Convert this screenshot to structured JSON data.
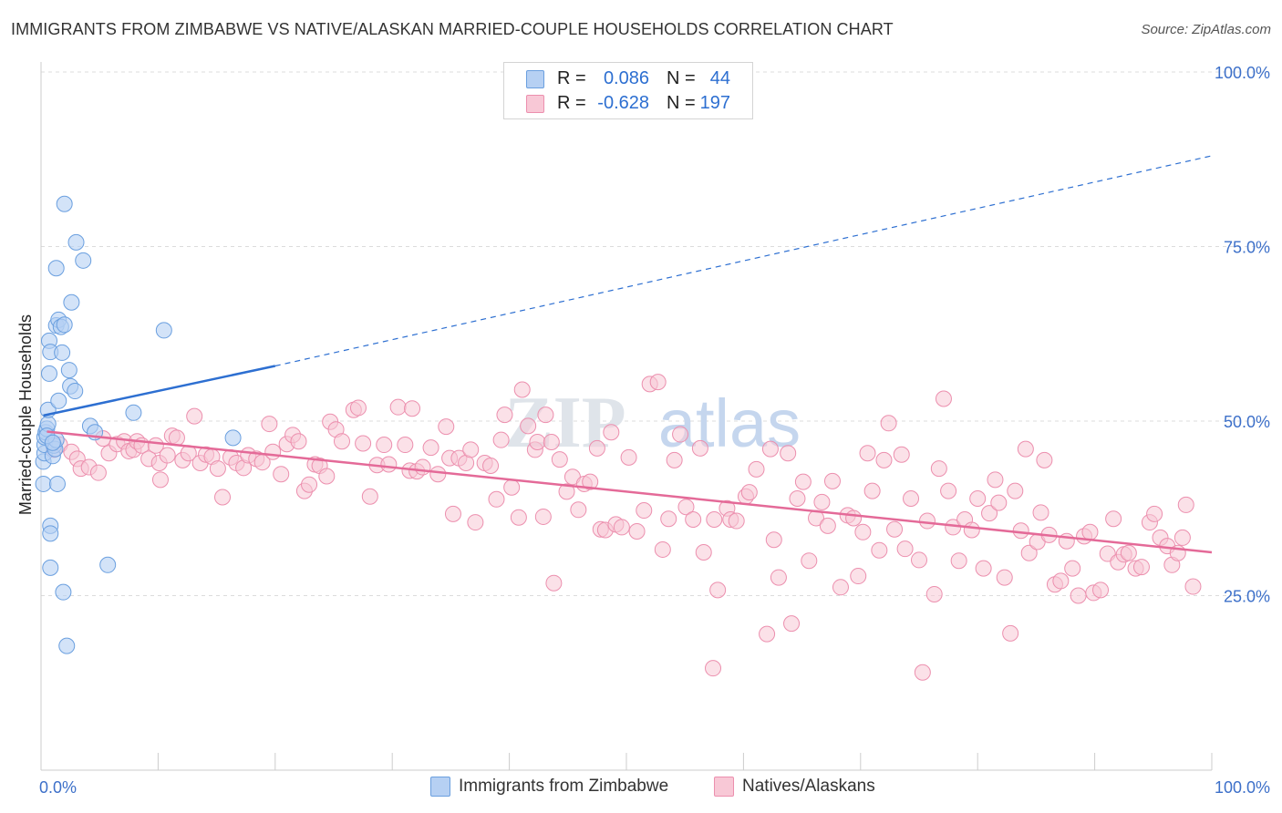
{
  "header": {
    "title": "IMMIGRANTS FROM ZIMBABWE VS NATIVE/ALASKAN MARRIED-COUPLE HOUSEHOLDS CORRELATION CHART",
    "source": "Source: ZipAtlas.com"
  },
  "watermark": {
    "part1": "ZIP",
    "part2": "atlas"
  },
  "legend": {
    "r_label": "R =",
    "n_label": "N =",
    "rows": [
      {
        "r": "0.086",
        "n": "44"
      },
      {
        "r": "-0.628",
        "n": "197"
      }
    ]
  },
  "chart_data": {
    "type": "scatter",
    "title": "IMMIGRANTS FROM ZIMBABWE VS NATIVE/ALASKAN MARRIED-COUPLE HOUSEHOLDS CORRELATION CHART",
    "ylabel": "Married-couple Households",
    "xlabel": "",
    "xlim": [
      0,
      100
    ],
    "ylim": [
      0,
      100
    ],
    "x_tick_labels": [
      {
        "value": 0,
        "label": "0.0%"
      },
      {
        "value": 100,
        "label": "100.0%"
      }
    ],
    "y_tick_labels": [
      {
        "value": 25,
        "label": "25.0%"
      },
      {
        "value": 50,
        "label": "50.0%"
      },
      {
        "value": 75,
        "label": "75.0%"
      },
      {
        "value": 100,
        "label": "100.0%"
      }
    ],
    "grid": true,
    "legend_position": "bottom-center",
    "colors": {
      "series1_fill": "#b6d0f3",
      "series1_stroke": "#6a9fdf",
      "series1_line": "#2d6fd1",
      "series2_fill": "#f8c8d6",
      "series2_stroke": "#ec8fae",
      "series2_line": "#e46a98",
      "tick_text": "#3d70c9"
    },
    "series": [
      {
        "name": "Immigrants from Zimbabwe",
        "r": 0.086,
        "n": 44,
        "trend": {
          "x0": 0.2,
          "y0": 50.8,
          "x1": 20.0,
          "y1": 57.9,
          "dashed_to_x": 100,
          "dashed_to_y": 88.0
        },
        "points": [
          [
            0.2,
            41.0
          ],
          [
            0.2,
            44.2
          ],
          [
            0.3,
            45.4
          ],
          [
            0.3,
            46.6
          ],
          [
            0.3,
            47.7
          ],
          [
            0.4,
            48.4
          ],
          [
            0.5,
            48.9
          ],
          [
            0.6,
            49.6
          ],
          [
            0.6,
            51.6
          ],
          [
            0.7,
            56.8
          ],
          [
            0.7,
            61.5
          ],
          [
            0.8,
            59.9
          ],
          [
            0.8,
            35.0
          ],
          [
            0.8,
            33.9
          ],
          [
            0.8,
            29.0
          ],
          [
            1.0,
            45.0
          ],
          [
            1.1,
            46.5
          ],
          [
            1.2,
            46.0
          ],
          [
            1.3,
            47.3
          ],
          [
            1.3,
            63.7
          ],
          [
            1.4,
            41.0
          ],
          [
            1.3,
            71.9
          ],
          [
            1.5,
            52.9
          ],
          [
            1.5,
            64.5
          ],
          [
            1.7,
            63.5
          ],
          [
            1.8,
            59.8
          ],
          [
            1.9,
            25.5
          ],
          [
            2.0,
            63.8
          ],
          [
            2.0,
            81.1
          ],
          [
            2.2,
            17.8
          ],
          [
            2.4,
            57.3
          ],
          [
            2.5,
            55.0
          ],
          [
            2.6,
            67.0
          ],
          [
            2.9,
            54.3
          ],
          [
            3.0,
            75.6
          ],
          [
            3.6,
            73.0
          ],
          [
            4.2,
            49.3
          ],
          [
            4.6,
            48.4
          ],
          [
            5.7,
            29.4
          ],
          [
            7.9,
            51.2
          ],
          [
            10.5,
            63.0
          ],
          [
            16.4,
            47.6
          ],
          [
            0.5,
            47.9
          ],
          [
            1.0,
            46.9
          ]
        ]
      },
      {
        "name": "Natives/Alaskans",
        "r": -0.628,
        "n": 197,
        "trend": {
          "x0": 0.5,
          "y0": 48.5,
          "x1": 100,
          "y1": 31.2
        },
        "points": [
          [
            1.1,
            45.9
          ],
          [
            1.6,
            46.6
          ],
          [
            2.6,
            45.6
          ],
          [
            3.1,
            44.6
          ],
          [
            3.4,
            43.2
          ],
          [
            4.1,
            43.4
          ],
          [
            4.9,
            42.6
          ],
          [
            5.3,
            47.5
          ],
          [
            5.8,
            45.4
          ],
          [
            6.5,
            46.7
          ],
          [
            7.1,
            47.1
          ],
          [
            7.5,
            45.7
          ],
          [
            7.9,
            45.9
          ],
          [
            8.2,
            47.1
          ],
          [
            8.6,
            46.5
          ],
          [
            9.2,
            44.6
          ],
          [
            9.8,
            46.5
          ],
          [
            10.1,
            44.0
          ],
          [
            10.2,
            41.6
          ],
          [
            10.8,
            45.1
          ],
          [
            11.2,
            47.9
          ],
          [
            11.6,
            47.6
          ],
          [
            12.1,
            44.4
          ],
          [
            12.6,
            45.4
          ],
          [
            13.1,
            50.7
          ],
          [
            13.6,
            44.0
          ],
          [
            14.1,
            45.2
          ],
          [
            14.6,
            44.9
          ],
          [
            15.1,
            43.2
          ],
          [
            15.5,
            39.1
          ],
          [
            16.2,
            44.8
          ],
          [
            16.7,
            44.0
          ],
          [
            17.3,
            43.3
          ],
          [
            17.7,
            45.1
          ],
          [
            18.4,
            44.6
          ],
          [
            18.9,
            44.1
          ],
          [
            19.5,
            49.6
          ],
          [
            19.8,
            45.6
          ],
          [
            20.5,
            42.4
          ],
          [
            21.0,
            46.7
          ],
          [
            21.5,
            48.0
          ],
          [
            22.0,
            47.1
          ],
          [
            22.5,
            40.0
          ],
          [
            22.9,
            40.9
          ],
          [
            23.4,
            43.8
          ],
          [
            23.8,
            43.6
          ],
          [
            24.4,
            42.1
          ],
          [
            24.7,
            49.9
          ],
          [
            25.2,
            48.8
          ],
          [
            25.7,
            47.1
          ],
          [
            26.7,
            51.6
          ],
          [
            27.1,
            51.9
          ],
          [
            27.5,
            46.8
          ],
          [
            28.1,
            39.2
          ],
          [
            28.7,
            43.7
          ],
          [
            29.3,
            46.6
          ],
          [
            29.7,
            43.8
          ],
          [
            30.5,
            52.0
          ],
          [
            31.1,
            46.6
          ],
          [
            31.5,
            42.9
          ],
          [
            31.7,
            51.8
          ],
          [
            32.1,
            42.8
          ],
          [
            32.6,
            43.4
          ],
          [
            33.3,
            46.2
          ],
          [
            33.9,
            42.4
          ],
          [
            34.6,
            49.2
          ],
          [
            34.9,
            44.7
          ],
          [
            35.2,
            36.7
          ],
          [
            35.7,
            44.7
          ],
          [
            36.3,
            44.0
          ],
          [
            36.7,
            45.9
          ],
          [
            37.1,
            35.5
          ],
          [
            37.9,
            44.0
          ],
          [
            38.4,
            43.6
          ],
          [
            38.9,
            38.8
          ],
          [
            39.3,
            47.3
          ],
          [
            39.6,
            50.9
          ],
          [
            40.2,
            40.5
          ],
          [
            40.8,
            36.2
          ],
          [
            41.1,
            54.5
          ],
          [
            41.6,
            49.3
          ],
          [
            42.2,
            45.9
          ],
          [
            42.4,
            47.0
          ],
          [
            42.9,
            36.3
          ],
          [
            43.1,
            50.9
          ],
          [
            43.6,
            47.0
          ],
          [
            43.8,
            26.8
          ],
          [
            44.3,
            44.5
          ],
          [
            44.9,
            39.9
          ],
          [
            45.4,
            42.0
          ],
          [
            45.9,
            37.3
          ],
          [
            46.4,
            41.0
          ],
          [
            46.9,
            41.3
          ],
          [
            47.5,
            46.1
          ],
          [
            47.8,
            34.5
          ],
          [
            48.2,
            34.4
          ],
          [
            48.7,
            48.4
          ],
          [
            49.1,
            35.2
          ],
          [
            49.6,
            34.8
          ],
          [
            50.2,
            44.8
          ],
          [
            50.9,
            34.2
          ],
          [
            51.5,
            37.2
          ],
          [
            52.0,
            55.3
          ],
          [
            52.7,
            55.6
          ],
          [
            53.1,
            31.6
          ],
          [
            53.6,
            36.0
          ],
          [
            54.1,
            44.4
          ],
          [
            54.6,
            48.1
          ],
          [
            55.1,
            37.7
          ],
          [
            55.7,
            35.9
          ],
          [
            56.3,
            46.1
          ],
          [
            56.6,
            31.2
          ],
          [
            57.5,
            35.9
          ],
          [
            57.8,
            25.8
          ],
          [
            58.6,
            37.5
          ],
          [
            58.9,
            35.9
          ],
          [
            59.4,
            35.7
          ],
          [
            60.2,
            39.2
          ],
          [
            60.5,
            39.8
          ],
          [
            61.1,
            43.1
          ],
          [
            62.0,
            19.5
          ],
          [
            62.3,
            46.0
          ],
          [
            62.6,
            33.0
          ],
          [
            63.0,
            27.6
          ],
          [
            63.8,
            45.4
          ],
          [
            64.1,
            21.0
          ],
          [
            64.6,
            38.9
          ],
          [
            65.1,
            41.3
          ],
          [
            65.6,
            30.0
          ],
          [
            66.2,
            36.1
          ],
          [
            66.7,
            38.4
          ],
          [
            67.2,
            35.0
          ],
          [
            67.6,
            41.4
          ],
          [
            68.3,
            26.2
          ],
          [
            68.9,
            36.5
          ],
          [
            69.4,
            36.1
          ],
          [
            69.8,
            27.8
          ],
          [
            70.2,
            34.1
          ],
          [
            70.6,
            45.4
          ],
          [
            71.0,
            40.0
          ],
          [
            71.6,
            31.5
          ],
          [
            72.0,
            44.4
          ],
          [
            72.4,
            49.7
          ],
          [
            72.9,
            34.5
          ],
          [
            73.5,
            45.2
          ],
          [
            73.8,
            31.7
          ],
          [
            74.3,
            38.9
          ],
          [
            75.0,
            30.1
          ],
          [
            75.7,
            35.7
          ],
          [
            76.3,
            25.2
          ],
          [
            76.7,
            43.2
          ],
          [
            77.1,
            53.2
          ],
          [
            77.5,
            40.0
          ],
          [
            77.9,
            34.8
          ],
          [
            78.4,
            30.0
          ],
          [
            78.9,
            35.9
          ],
          [
            79.5,
            34.4
          ],
          [
            80.0,
            38.9
          ],
          [
            80.5,
            28.9
          ],
          [
            81.0,
            36.8
          ],
          [
            81.5,
            41.6
          ],
          [
            81.8,
            38.3
          ],
          [
            82.3,
            27.6
          ],
          [
            82.8,
            19.6
          ],
          [
            83.2,
            40.0
          ],
          [
            83.7,
            34.3
          ],
          [
            84.1,
            46.0
          ],
          [
            84.4,
            31.1
          ],
          [
            85.1,
            32.7
          ],
          [
            85.4,
            36.9
          ],
          [
            85.7,
            44.4
          ],
          [
            86.1,
            33.7
          ],
          [
            86.6,
            26.6
          ],
          [
            87.1,
            27.1
          ],
          [
            87.6,
            32.8
          ],
          [
            88.1,
            28.9
          ],
          [
            88.6,
            25.0
          ],
          [
            89.1,
            33.5
          ],
          [
            89.6,
            34.1
          ],
          [
            89.9,
            25.4
          ],
          [
            90.5,
            25.8
          ],
          [
            91.1,
            31.0
          ],
          [
            91.6,
            36.0
          ],
          [
            92.0,
            29.8
          ],
          [
            92.5,
            30.9
          ],
          [
            92.9,
            31.1
          ],
          [
            93.5,
            28.9
          ],
          [
            94.0,
            29.1
          ],
          [
            94.7,
            35.5
          ],
          [
            95.1,
            36.7
          ],
          [
            95.6,
            33.3
          ],
          [
            96.2,
            32.1
          ],
          [
            96.6,
            29.4
          ],
          [
            97.1,
            31.1
          ],
          [
            97.5,
            33.3
          ],
          [
            97.8,
            38.0
          ],
          [
            98.4,
            26.3
          ],
          [
            57.4,
            14.6
          ],
          [
            75.3,
            14.0
          ]
        ]
      }
    ]
  }
}
